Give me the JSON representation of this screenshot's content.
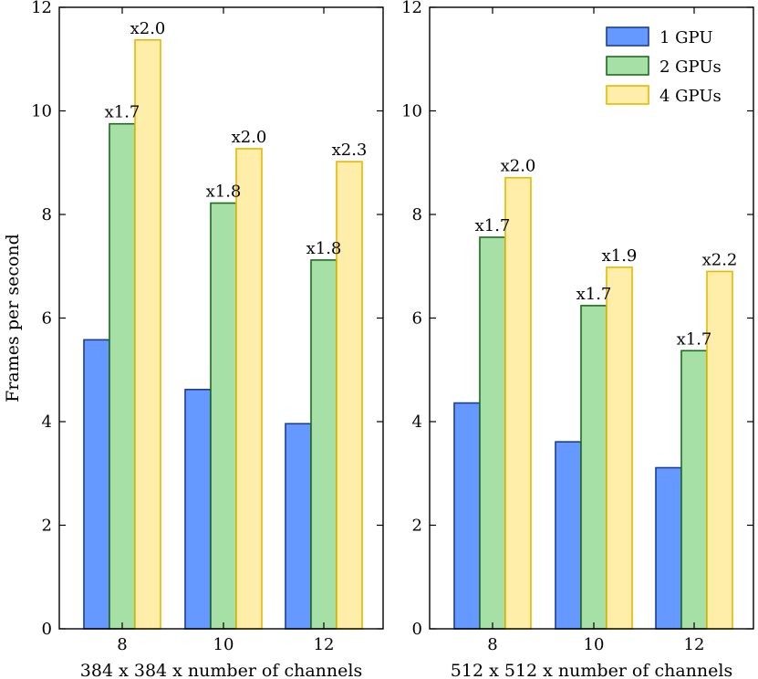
{
  "chart_data": [
    {
      "type": "bar",
      "xlabel": "384 x 384 x number of channels",
      "ylabel": "Frames per second",
      "ylim": [
        0,
        12
      ],
      "yticks": [
        0,
        2,
        4,
        6,
        8,
        10,
        12
      ],
      "categories": [
        "8",
        "10",
        "12"
      ],
      "series": [
        {
          "name": "1 GPU",
          "values": [
            5.58,
            4.62,
            3.96
          ]
        },
        {
          "name": "2 GPUs",
          "values": [
            9.75,
            8.22,
            7.12
          ]
        },
        {
          "name": "4 GPUs",
          "values": [
            11.37,
            9.27,
            9.02
          ]
        }
      ],
      "annotations": [
        {
          "category": "8",
          "series": "2 GPUs",
          "text": "x1.7"
        },
        {
          "category": "8",
          "series": "4 GPUs",
          "text": "x2.0"
        },
        {
          "category": "10",
          "series": "2 GPUs",
          "text": "x1.8"
        },
        {
          "category": "10",
          "series": "4 GPUs",
          "text": "x2.0"
        },
        {
          "category": "12",
          "series": "2 GPUs",
          "text": "x1.8"
        },
        {
          "category": "12",
          "series": "4 GPUs",
          "text": "x2.3"
        }
      ]
    },
    {
      "type": "bar",
      "xlabel": "512 x 512 x number of channels",
      "ylabel": "",
      "ylim": [
        0,
        12
      ],
      "yticks": [
        0,
        2,
        4,
        6,
        8,
        10,
        12
      ],
      "categories": [
        "8",
        "10",
        "12"
      ],
      "legend": "top-right",
      "series": [
        {
          "name": "1 GPU",
          "values": [
            4.36,
            3.61,
            3.11
          ]
        },
        {
          "name": "2 GPUs",
          "values": [
            7.56,
            6.24,
            5.37
          ]
        },
        {
          "name": "4 GPUs",
          "values": [
            8.71,
            6.98,
            6.9
          ]
        }
      ],
      "annotations": [
        {
          "category": "8",
          "series": "2 GPUs",
          "text": "x1.7"
        },
        {
          "category": "8",
          "series": "4 GPUs",
          "text": "x2.0"
        },
        {
          "category": "10",
          "series": "2 GPUs",
          "text": "x1.7"
        },
        {
          "category": "10",
          "series": "4 GPUs",
          "text": "x1.9"
        },
        {
          "category": "12",
          "series": "2 GPUs",
          "text": "x1.7"
        },
        {
          "category": "12",
          "series": "4 GPUs",
          "text": "x2.2"
        }
      ]
    }
  ],
  "colors": {
    "1 GPU": {
      "fill": "#6699ff",
      "stroke": "#1a3d99"
    },
    "2 GPUs": {
      "fill": "#a6e0a6",
      "stroke": "#1e6b1e"
    },
    "4 GPUs": {
      "fill": "#ffeeaa",
      "stroke": "#e6b800"
    }
  }
}
